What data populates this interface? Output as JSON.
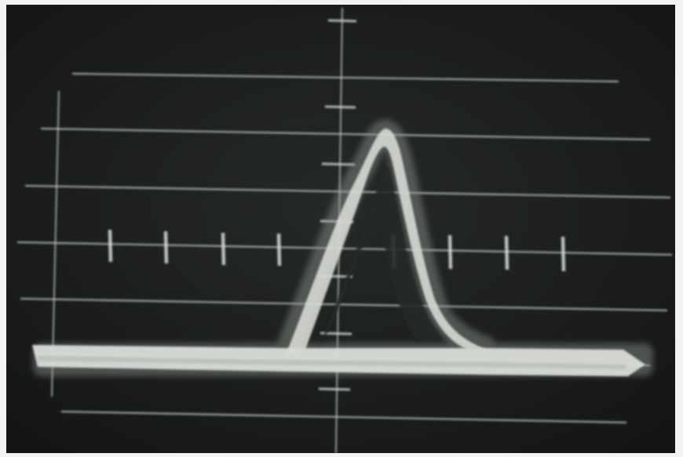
{
  "scene": {
    "subject": "oscilloscope-screen-photo",
    "graticule": {
      "major_horizontal_lines": 7,
      "center_vertical_axis": true,
      "center_horizontal_ticks": 8,
      "center_vertical_ticks": 7
    },
    "trace": {
      "shape": "single-pulse",
      "baseline_visible": true
    }
  },
  "colors": {
    "frame": "#f3f3f1",
    "screen": "#1a1d1c",
    "graticule": "#b7c2bd",
    "trace": "#d9dcd6",
    "trace_glow": "#8f9692"
  }
}
